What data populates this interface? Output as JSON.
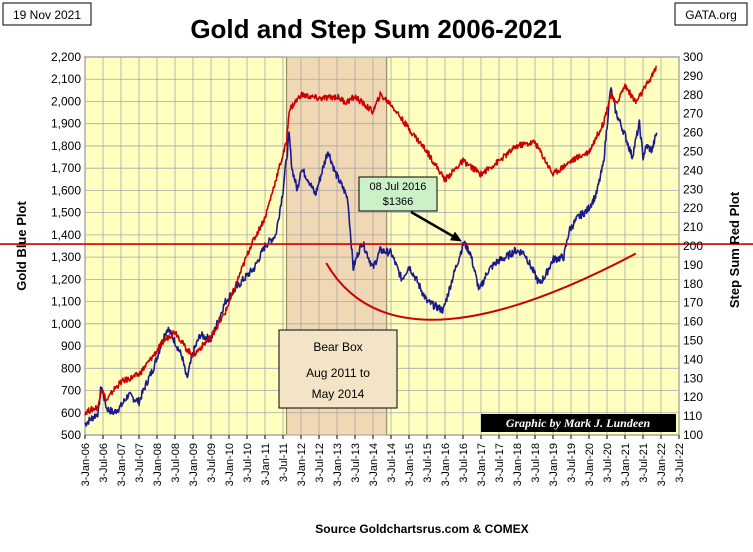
{
  "date_label": "19 Nov 2021",
  "site_label": "GATA.org",
  "chart_data": {
    "type": "line",
    "title": "Gold and Step Sum 2006-2021",
    "xlabel": "Source  Goldchartsrus.com  & COMEX",
    "ylabel_left": "Gold    Blue Plot",
    "ylabel_right": "Step Sum    Red Plot",
    "ylim_left": [
      500,
      2200
    ],
    "ylim_right": [
      100,
      300
    ],
    "yticks_left": [
      "500",
      "600",
      "700",
      "800",
      "900",
      "1,000",
      "1,100",
      "1,200",
      "1,300",
      "1,400",
      "1,500",
      "1,600",
      "1,700",
      "1,800",
      "1,900",
      "2,000",
      "2,100",
      "2,200"
    ],
    "yticks_right": [
      "100",
      "110",
      "120",
      "130",
      "140",
      "150",
      "160",
      "170",
      "180",
      "190",
      "200",
      "210",
      "220",
      "230",
      "240",
      "250",
      "260",
      "270",
      "280",
      "290",
      "300"
    ],
    "x_domain": [
      2006.0,
      2022.5
    ],
    "x_tick_labels": [
      "3-Jan-06",
      "3-Jul-06",
      "3-Jan-07",
      "3-Jul-07",
      "3-Jan-08",
      "3-Jul-08",
      "3-Jan-09",
      "3-Jul-09",
      "3-Jan-10",
      "3-Jul-10",
      "3-Jan-11",
      "3-Jul-11",
      "3-Jan-12",
      "3-Jul-12",
      "3-Jan-13",
      "3-Jul-13",
      "3-Jan-14",
      "3-Jul-14",
      "3-Jan-15",
      "3-Jul-15",
      "3-Jan-16",
      "3-Jul-16",
      "3-Jan-17",
      "3-Jul-17",
      "3-Jan-18",
      "3-Jul-18",
      "3-Jan-19",
      "3-Jul-19",
      "3-Jan-20",
      "3-Jul-20",
      "3-Jan-21",
      "3-Jul-21",
      "3-Jan-22",
      "3-Jul-22"
    ],
    "series": [
      {
        "name": "Gold (Blue Plot)",
        "axis": "left",
        "color": "#1a1a8c",
        "x": [
          2006.0,
          2006.37,
          2006.45,
          2006.6,
          2006.8,
          2007.0,
          2007.2,
          2007.5,
          2007.7,
          2007.9,
          2008.2,
          2008.3,
          2008.5,
          2008.7,
          2008.83,
          2009.0,
          2009.2,
          2009.5,
          2009.9,
          2010.0,
          2010.4,
          2010.7,
          2011.0,
          2011.3,
          2011.5,
          2011.67,
          2011.75,
          2011.9,
          2012.0,
          2012.2,
          2012.4,
          2012.75,
          2012.95,
          2013.2,
          2013.3,
          2013.45,
          2013.55,
          2013.7,
          2014.0,
          2014.2,
          2014.5,
          2014.8,
          2015.0,
          2015.2,
          2015.5,
          2015.95,
          2016.2,
          2016.52,
          2016.7,
          2016.95,
          2017.2,
          2017.45,
          2017.7,
          2017.95,
          2018.2,
          2018.62,
          2018.8,
          2019.0,
          2019.3,
          2019.45,
          2019.7,
          2019.95,
          2020.2,
          2020.4,
          2020.6,
          2020.75,
          2021.0,
          2021.2,
          2021.4,
          2021.5,
          2021.6,
          2021.75,
          2021.88
        ],
        "values": [
          550,
          600,
          725,
          620,
          600,
          630,
          680,
          650,
          730,
          800,
          950,
          980,
          920,
          850,
          750,
          870,
          950,
          930,
          1100,
          1120,
          1200,
          1250,
          1350,
          1400,
          1600,
          1850,
          1700,
          1600,
          1700,
          1650,
          1580,
          1780,
          1680,
          1600,
          1560,
          1250,
          1300,
          1370,
          1250,
          1330,
          1320,
          1200,
          1260,
          1200,
          1100,
          1060,
          1200,
          1366,
          1320,
          1150,
          1240,
          1280,
          1300,
          1330,
          1320,
          1180,
          1220,
          1290,
          1300,
          1420,
          1480,
          1510,
          1580,
          1720,
          2060,
          1950,
          1850,
          1750,
          1900,
          1750,
          1800,
          1780,
          1860
        ]
      },
      {
        "name": "Step Sum (Red Plot)",
        "axis": "right",
        "color": "#cc0000",
        "x": [
          2006.0,
          2006.37,
          2006.45,
          2006.6,
          2006.8,
          2007.0,
          2007.5,
          2007.9,
          2008.2,
          2008.5,
          2008.8,
          2009.0,
          2009.5,
          2009.9,
          2010.2,
          2010.6,
          2011.0,
          2011.3,
          2011.6,
          2011.67,
          2012.0,
          2012.5,
          2013.0,
          2013.25,
          2013.5,
          2014.0,
          2014.2,
          2014.5,
          2015.0,
          2015.5,
          2016.0,
          2016.5,
          2017.0,
          2017.5,
          2018.0,
          2018.5,
          2019.0,
          2019.5,
          2020.0,
          2020.4,
          2020.6,
          2020.75,
          2021.0,
          2021.3,
          2021.5,
          2021.75,
          2021.88
        ],
        "values": [
          112,
          115,
          125,
          118,
          124,
          128,
          132,
          142,
          150,
          155,
          146,
          142,
          152,
          165,
          180,
          200,
          215,
          235,
          255,
          272,
          280,
          278,
          279,
          276,
          279,
          271,
          280,
          275,
          262,
          250,
          235,
          245,
          238,
          245,
          253,
          255,
          238,
          245,
          250,
          265,
          280,
          275,
          285,
          276,
          282,
          290,
          295
        ]
      }
    ],
    "reference_line": {
      "axis": "right",
      "value": 201
    },
    "bear_box": {
      "x_start": 2011.6,
      "x_end": 2014.38,
      "label_lines": [
        "Bear Box",
        "Aug 2011  to",
        "May 2014"
      ]
    },
    "annotation": {
      "lines": [
        "08 Jul 2016",
        "$1366"
      ],
      "target_x": 2016.52,
      "target_value": 1366
    },
    "curve": {
      "axis": "right",
      "x": [
        2012.7,
        2015.8,
        2021.3
      ],
      "values": [
        191,
        161,
        196
      ]
    },
    "credit": "Graphic by Mark J. Lundeen"
  }
}
